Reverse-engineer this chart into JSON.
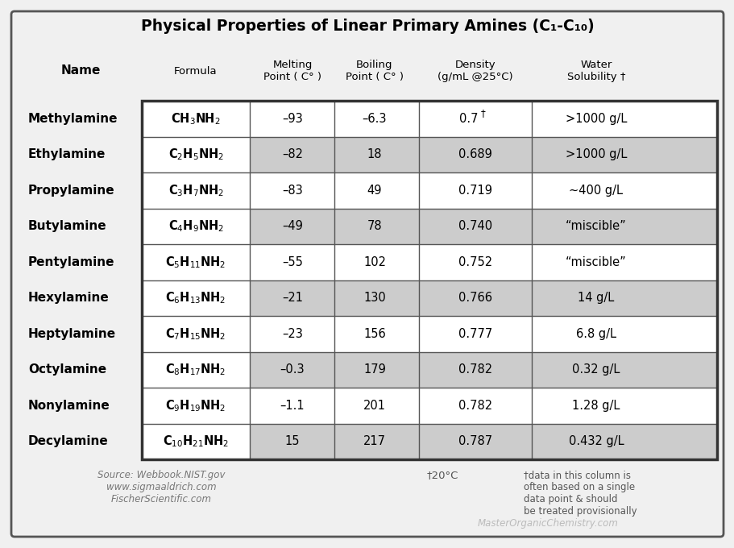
{
  "title": "Physical Properties of Linear Primary Amines (C₁-C₁₀)",
  "rows": [
    {
      "name": "Methylamine",
      "formula_display": "CH₃NH₂",
      "formula_latex": "CH$_3$NH$_2$",
      "melting": "–93",
      "boiling": "–6.3",
      "density": "0.7",
      "density_dagger": true,
      "solubility": ">1000 g/L",
      "shaded": false
    },
    {
      "name": "Ethylamine",
      "formula_display": "C₂H₅NH₂",
      "formula_latex": "C$_2$H$_5$NH$_2$",
      "melting": "–82",
      "boiling": "18",
      "density": "0.689",
      "density_dagger": false,
      "solubility": ">1000 g/L",
      "shaded": true
    },
    {
      "name": "Propylamine",
      "formula_display": "C₃H₇NH₂",
      "formula_latex": "C$_3$H$_7$NH$_2$",
      "melting": "–83",
      "boiling": "49",
      "density": "0.719",
      "density_dagger": false,
      "solubility": "∼400 g/L",
      "shaded": false
    },
    {
      "name": "Butylamine",
      "formula_display": "C₄H₉NH₂",
      "formula_latex": "C$_4$H$_9$NH$_2$",
      "melting": "–49",
      "boiling": "78",
      "density": "0.740",
      "density_dagger": false,
      "solubility": "“miscible”",
      "shaded": true
    },
    {
      "name": "Pentylamine",
      "formula_display": "C₅H₁₁NH₂",
      "formula_latex": "C$_5$H$_{11}$NH$_2$",
      "melting": "–55",
      "boiling": "102",
      "density": "0.752",
      "density_dagger": false,
      "solubility": "“miscible”",
      "shaded": false
    },
    {
      "name": "Hexylamine",
      "formula_display": "C₆H₁₃NH₂",
      "formula_latex": "C$_6$H$_{13}$NH$_2$",
      "melting": "–21",
      "boiling": "130",
      "density": "0.766",
      "density_dagger": false,
      "solubility": "14 g/L",
      "shaded": true
    },
    {
      "name": "Heptylamine",
      "formula_display": "C₇H₁₅NH₂",
      "formula_latex": "C$_7$H$_{15}$NH$_2$",
      "melting": "–23",
      "boiling": "156",
      "density": "0.777",
      "density_dagger": false,
      "solubility": "6.8 g/L",
      "shaded": false
    },
    {
      "name": "Octylamine",
      "formula_display": "C₈H₁₇NH₂",
      "formula_latex": "C$_8$H$_{17}$NH$_2$",
      "melting": "–0.3",
      "boiling": "179",
      "density": "0.782",
      "density_dagger": false,
      "solubility": "0.32 g/L",
      "shaded": true
    },
    {
      "name": "Nonylamine",
      "formula_display": "C₉H₁₉NH₂",
      "formula_latex": "C$_9$H$_{19}$NH$_2$",
      "melting": "–1.1",
      "boiling": "201",
      "density": "0.782",
      "density_dagger": false,
      "solubility": "1.28 g/L",
      "shaded": false
    },
    {
      "name": "Decylamine",
      "formula_display": "C₁₀H₂₁NH₂",
      "formula_latex": "C$_{10}$H$_{21}$NH$_2$",
      "melting": "15",
      "boiling": "217",
      "density": "0.787",
      "density_dagger": false,
      "solubility": "0.432 g/L",
      "shaded": true
    }
  ],
  "footnote_source": "Source: Webbook.NIST.gov\nwww.sigmaaldrich.com\nFischerScientific.com",
  "footnote_dagger_mid": "†20°C",
  "footnote_col": "†data in this column is\noften based on a single\ndata point & should\nbe treated provisionally",
  "watermark": "MasterOrganicChemistry.com",
  "bg_color": "#f0f0f0",
  "shaded_color": "#cccccc",
  "white_color": "#ffffff",
  "outer_border_color": "#555555",
  "inner_border_color": "#333333"
}
